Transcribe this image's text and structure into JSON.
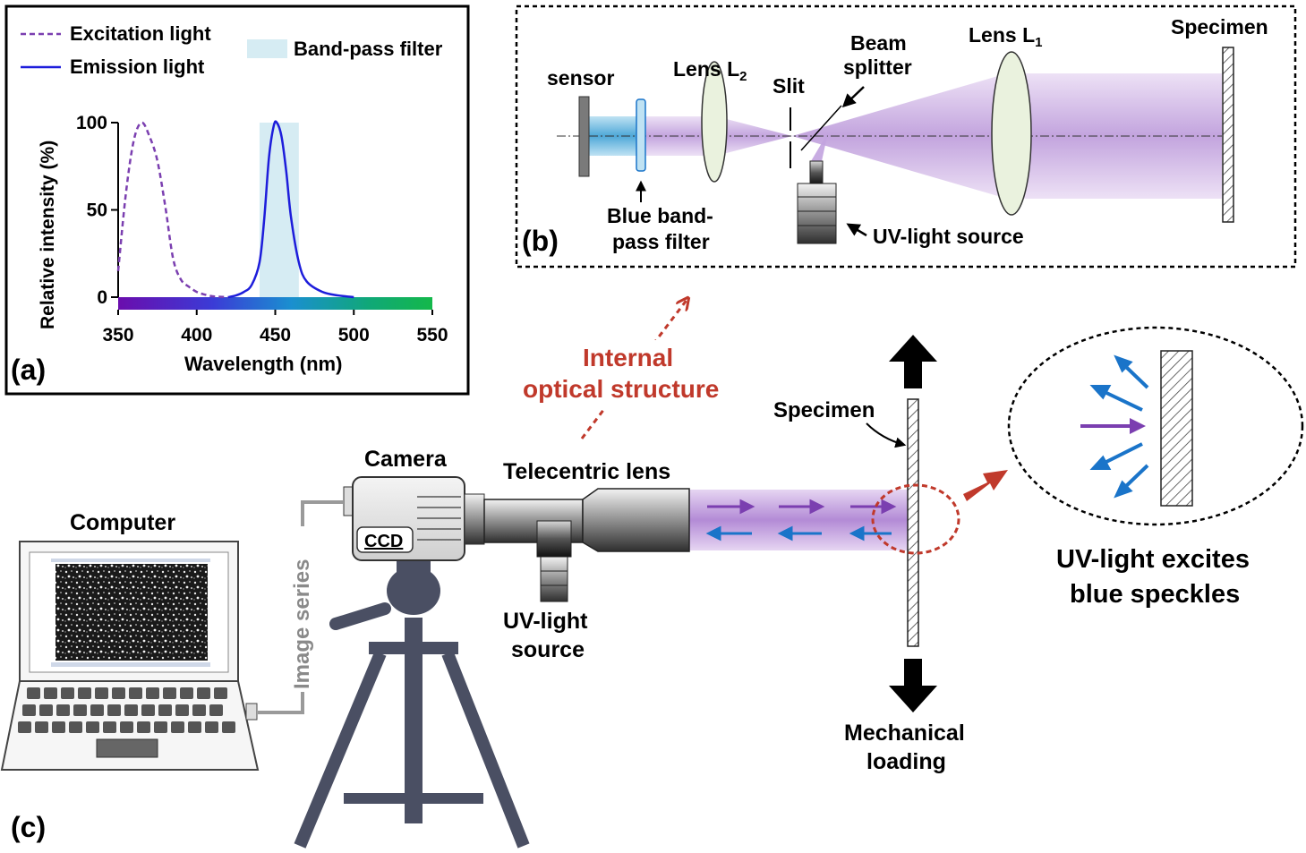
{
  "panel_a": {
    "label": "(a)",
    "legend": {
      "excitation": "Excitation light",
      "emission": "Emission light",
      "bandpass": "Band-pass filter"
    },
    "y_axis_label": "Relative intensity (%)",
    "x_axis_label": "Wavelength (nm)",
    "y_ticks": [
      "100",
      "50",
      "0"
    ],
    "x_ticks": [
      "350",
      "400",
      "450",
      "500",
      "550"
    ]
  },
  "chart_data": {
    "type": "line",
    "xlabel": "Wavelength (nm)",
    "ylabel": "Relative intensity (%)",
    "xlim": [
      350,
      550
    ],
    "ylim": [
      0,
      100
    ],
    "bandpass_range": [
      440,
      465
    ],
    "series": [
      {
        "name": "Excitation light",
        "style": "dashed",
        "color": "#7b3fb0",
        "x": [
          350,
          355,
          360,
          365,
          370,
          375,
          380,
          385,
          390,
          395,
          400,
          405,
          410,
          415,
          420
        ],
        "y": [
          15,
          60,
          90,
          100,
          92,
          78,
          52,
          22,
          10,
          6,
          3,
          1.5,
          0.5,
          0.2,
          0
        ]
      },
      {
        "name": "Emission light",
        "style": "solid",
        "color": "#1d1ddb",
        "x": [
          420,
          425,
          430,
          435,
          440,
          443,
          446,
          449,
          451,
          454,
          457,
          460,
          465,
          470,
          480,
          490,
          500
        ],
        "y": [
          0,
          1,
          3,
          7,
          20,
          45,
          80,
          98,
          100,
          92,
          72,
          46,
          20,
          9,
          3,
          1,
          0
        ]
      }
    ]
  },
  "panel_b": {
    "label": "(b)",
    "sensor": "sensor",
    "lens_l2": "Lens L",
    "lens_l2_sub": "2",
    "slit": "Slit",
    "beam_splitter_line1": "Beam",
    "beam_splitter_line2": "splitter",
    "lens_l1": "Lens L",
    "lens_l1_sub": "1",
    "specimen": "Specimen",
    "filter_line1": "Blue band-",
    "filter_line2": "pass filter",
    "uv_source": "UV-light source"
  },
  "panel_c": {
    "label": "(c)",
    "internal_line1": "Internal",
    "internal_line2": "optical structure",
    "camera": "Camera",
    "ccd": "CCD",
    "telecentric": "Telecentric lens",
    "computer": "Computer",
    "image_series": "Image series",
    "uv_line1": "UV-light",
    "uv_line2": "source",
    "specimen": "Specimen",
    "mechanical_line1": "Mechanical",
    "mechanical_line2": "loading",
    "excites_line1": "UV-light excites",
    "excites_line2": "blue speckles"
  },
  "colors": {
    "excitation": "#7b3fb0",
    "emission": "#1d1ddb",
    "bandpass": "#d6ecf3",
    "uv_beam": "#a87bcc",
    "blue_arrow": "#1a74c9",
    "red_annotation": "#c0392b",
    "tripod": "#4a4f63"
  }
}
